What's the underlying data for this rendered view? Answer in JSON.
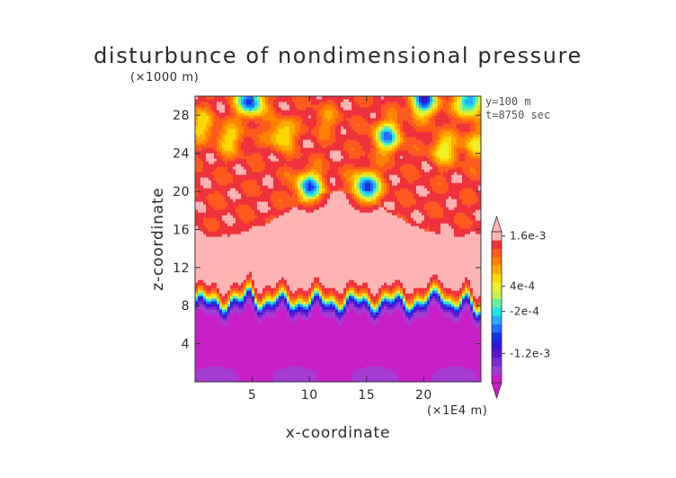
{
  "chart_data": {
    "type": "heatmap",
    "title": "disturbunce of nondimensional pressure",
    "xlabel": "x-coordinate",
    "ylabel": "z-coordinate",
    "x_unit": "(×1E4 m)",
    "y_unit": "(×1000 m)",
    "annotations": [
      "y=100 m",
      "t=8750 sec"
    ],
    "xlim": [
      0,
      25
    ],
    "ylim": [
      0,
      30
    ],
    "x_ticks": [
      5,
      10,
      15,
      20
    ],
    "y_ticks": [
      4,
      8,
      12,
      16,
      20,
      24,
      28
    ],
    "colorbar": {
      "labels": [
        {
          "text": "1.6e-3",
          "value": 0.0016
        },
        {
          "text": "4e-4",
          "value": 0.0004
        },
        {
          "text": "-2e-4",
          "value": -0.0002
        },
        {
          "text": "-1.2e-3",
          "value": -0.0012
        }
      ],
      "levels": [
        -0.0018,
        -0.0016,
        -0.0014,
        -0.0012,
        -0.001,
        -0.0008,
        -0.0006,
        -0.0004,
        -0.0002,
        0,
        0.0002,
        0.0004,
        0.0006,
        0.0008,
        0.001,
        0.0012,
        0.0014,
        0.0016
      ],
      "colors": [
        "#c81ec8",
        "#a43cd2",
        "#7a28d2",
        "#5a14d2",
        "#3214dc",
        "#1432e6",
        "#1e6eff",
        "#28aaff",
        "#1ee6e6",
        "#64f0a0",
        "#c8f050",
        "#f0f028",
        "#ffd700",
        "#ffaa00",
        "#ff8200",
        "#ff5a1e",
        "#f0323c",
        "#ffb4b4"
      ],
      "extend": "both"
    },
    "field_description": {
      "lower_layer_value": -0.0018,
      "upper_layer_value": 0.0016,
      "transition_height": 8.5,
      "blobs": [
        {
          "x": 4.8,
          "z": 29.5,
          "value": -0.0006
        },
        {
          "x": 15.0,
          "z": 20.5,
          "value": -0.0006
        },
        {
          "x": 10.0,
          "z": 20.5,
          "value": -0.0004
        },
        {
          "x": 16.8,
          "z": 25.8,
          "value": -0.0002
        },
        {
          "x": 20.0,
          "z": 29.6,
          "value": -0.0006
        },
        {
          "x": 24.0,
          "z": 29.5,
          "value": -0.0004
        },
        {
          "x": 3.0,
          "z": 25.5,
          "value": 0.0008
        },
        {
          "x": 7.6,
          "z": 26.0,
          "value": 0.0006
        },
        {
          "x": 21.8,
          "z": 24.5,
          "value": 0.0006
        },
        {
          "x": 0.5,
          "z": 27.0,
          "value": 0.0008
        },
        {
          "x": 24.5,
          "z": 25.0,
          "value": 0.0008
        },
        {
          "x": 11.5,
          "z": 27.5,
          "value": 0.0012
        }
      ]
    }
  }
}
